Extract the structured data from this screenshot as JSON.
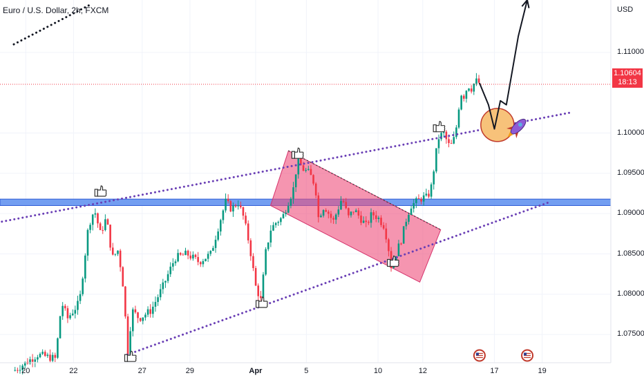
{
  "header": {
    "title": "Euro / U.S. Dollar, 2h, FXCM",
    "currency": "USD"
  },
  "price_badge": {
    "price": "1.10604",
    "countdown": "18:13",
    "color": "#f23645"
  },
  "colors": {
    "up": "#089981",
    "down": "#f23645",
    "channel": "#6a3fb5",
    "zone": "#5b8def",
    "box": "#ef4f7c",
    "target": "#f7c27a"
  },
  "icons": [
    "thumbs-up-icon",
    "rocket-icon",
    "us-flag-icon"
  ],
  "chart_data": {
    "type": "candlestick",
    "title": "Euro / U.S. Dollar, 2h, FXCM",
    "ylim": [
      1.0715,
      1.1165
    ],
    "xlim": [
      0,
      100
    ],
    "y_ticks": [
      "1.11000",
      "1.10000",
      "1.09500",
      "1.09000",
      "1.08500",
      "1.08000",
      "1.07500"
    ],
    "x_ticks": [
      {
        "label": "20",
        "x": 2,
        "bold": false
      },
      {
        "label": "22",
        "x": 10,
        "bold": false
      },
      {
        "label": "27",
        "x": 21.5,
        "bold": false
      },
      {
        "label": "29",
        "x": 29.5,
        "bold": false
      },
      {
        "label": "Apr",
        "x": 40.5,
        "bold": true
      },
      {
        "label": "5",
        "x": 49,
        "bold": false
      },
      {
        "label": "10",
        "x": 61,
        "bold": false
      },
      {
        "label": "12",
        "x": 68.5,
        "bold": false
      },
      {
        "label": "17",
        "x": 80.5,
        "bold": false
      },
      {
        "label": "19",
        "x": 88.5,
        "bold": false
      }
    ],
    "last_price": 1.10604,
    "price_path": [
      [
        0,
        1.0705
      ],
      [
        4,
        1.0725
      ],
      [
        7,
        1.072
      ],
      [
        8,
        1.079
      ],
      [
        9,
        1.077
      ],
      [
        11,
        1.079
      ],
      [
        12.5,
        1.0885
      ],
      [
        13.5,
        1.0905
      ],
      [
        14.5,
        1.0875
      ],
      [
        15.5,
        1.0895
      ],
      [
        16.5,
        1.0845
      ],
      [
        17.5,
        1.0855
      ],
      [
        18.5,
        1.08
      ],
      [
        19,
        1.072
      ],
      [
        19.8,
        1.078
      ],
      [
        21,
        1.077
      ],
      [
        23,
        1.078
      ],
      [
        25,
        1.081
      ],
      [
        27,
        1.0845
      ],
      [
        29,
        1.085
      ],
      [
        31,
        1.084
      ],
      [
        33,
        1.085
      ],
      [
        34.5,
        1.089
      ],
      [
        35.5,
        1.0915
      ],
      [
        36.5,
        1.0905
      ],
      [
        37.5,
        1.0915
      ],
      [
        38.5,
        1.0895
      ],
      [
        39.5,
        1.086
      ],
      [
        40.5,
        1.081
      ],
      [
        41.5,
        1.079
      ],
      [
        42,
        1.0845
      ],
      [
        43,
        1.088
      ],
      [
        44,
        1.089
      ],
      [
        45,
        1.0895
      ],
      [
        46,
        1.0915
      ],
      [
        46.8,
        1.093
      ],
      [
        47.5,
        1.0965
      ],
      [
        48.5,
        1.0955
      ],
      [
        49.5,
        1.095
      ],
      [
        50.5,
        1.0935
      ],
      [
        51,
        1.0895
      ],
      [
        52,
        1.091
      ],
      [
        53.5,
        1.089
      ],
      [
        55,
        1.092
      ],
      [
        56,
        1.0895
      ],
      [
        57,
        1.0905
      ],
      [
        58,
        1.0895
      ],
      [
        59,
        1.0885
      ],
      [
        60,
        1.09
      ],
      [
        61,
        1.0895
      ],
      [
        62,
        1.0885
      ],
      [
        62.6,
        1.0865
      ],
      [
        63.2,
        1.0835
      ],
      [
        64,
        1.085
      ],
      [
        65,
        1.087
      ],
      [
        65.8,
        1.0895
      ],
      [
        66.5,
        1.091
      ],
      [
        67.5,
        1.0915
      ],
      [
        68.5,
        1.092
      ],
      [
        69.3,
        1.092
      ],
      [
        70,
        1.0935
      ],
      [
        70.6,
        1.097
      ],
      [
        71.2,
        1.0995
      ],
      [
        72,
        1.1
      ],
      [
        72.8,
        1.0985
      ],
      [
        73.5,
        1.0985
      ],
      [
        74.2,
        1.101
      ],
      [
        74.8,
        1.105
      ],
      [
        75.5,
        1.1045
      ],
      [
        76,
        1.106
      ],
      [
        76.7,
        1.1055
      ],
      [
        77.3,
        1.1065
      ],
      [
        78,
        1.1062
      ]
    ],
    "projection_path": [
      [
        78,
        1.1062
      ],
      [
        79.5,
        1.1035
      ],
      [
        80.5,
        1.1005
      ],
      [
        81.5,
        1.104
      ],
      [
        82.5,
        1.1035
      ],
      [
        84.5,
        1.112
      ],
      [
        86,
        1.1165
      ]
    ],
    "channel_upper": [
      [
        -2,
        1.089
      ],
      [
        93,
        1.1025
      ]
    ],
    "channel_lower": [
      [
        19,
        1.0725
      ],
      [
        90,
        1.0915
      ]
    ],
    "top_trendline": [
      [
        0,
        1.111
      ],
      [
        13,
        1.116
      ]
    ],
    "support_zone": [
      1.091,
      1.0918
    ],
    "descending_box": [
      [
        46,
        1.0978
      ],
      [
        71.5,
        1.088
      ],
      [
        68,
        1.0815
      ],
      [
        43,
        1.091
      ]
    ],
    "target_circle": [
      81,
      1.101
    ],
    "thumbs_marks": [
      [
        14.5,
        1.0925
      ],
      [
        19.5,
        1.072
      ],
      [
        41.5,
        1.0787
      ],
      [
        47.5,
        1.0972
      ],
      [
        63.5,
        1.0838
      ],
      [
        71.2,
        1.1005
      ]
    ],
    "flag_marks": [
      [
        78,
        1.0724
      ],
      [
        86,
        1.0724
      ]
    ],
    "rocket_mark": [
      84.5,
      1.1008
    ]
  }
}
